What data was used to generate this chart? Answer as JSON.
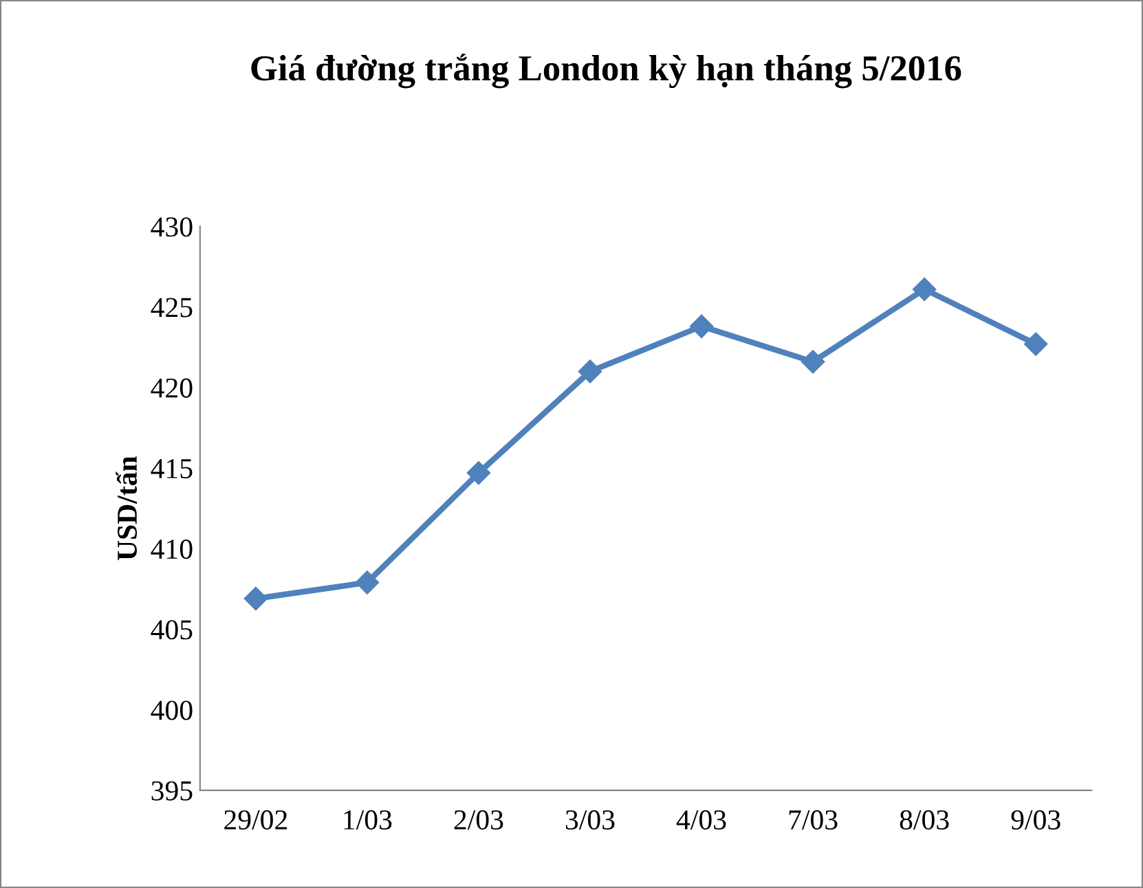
{
  "chart_data": {
    "type": "line",
    "title": "Giá đường trắng London kỳ hạn tháng 5/2016",
    "ylabel": "USD/tấn",
    "categories": [
      "29/02",
      "1/03",
      "2/03",
      "3/03",
      "4/03",
      "7/03",
      "8/03",
      "9/03"
    ],
    "series": [
      {
        "color": "#4f81bd",
        "values": [
          406.9,
          407.9,
          414.7,
          421.0,
          423.8,
          421.6,
          426.1,
          422.7
        ]
      }
    ],
    "ylim": [
      395,
      430
    ],
    "yticks": [
      395,
      400,
      405,
      410,
      415,
      420,
      425,
      430
    ],
    "grid": false,
    "legend": false,
    "marker": "diamond",
    "line_style": "solid"
  }
}
